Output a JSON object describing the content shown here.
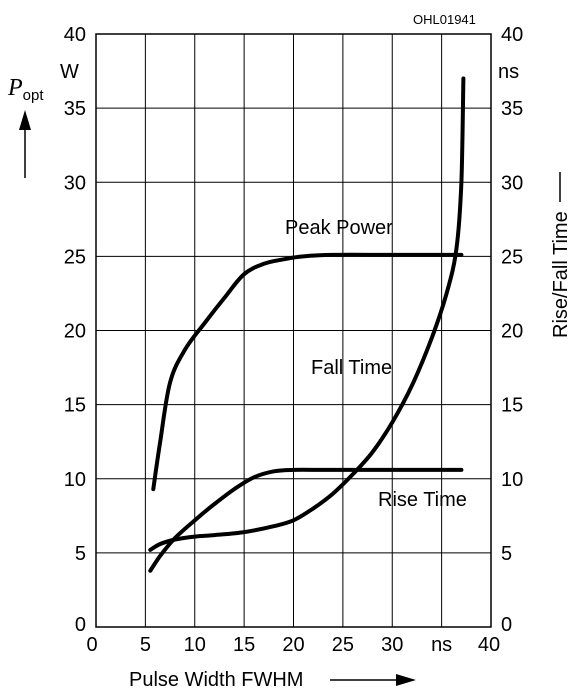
{
  "chart_data": {
    "type": "line",
    "id_label": "OHL01941",
    "xlabel": "Pulse Width FWHM",
    "x_unit": "ns",
    "y_left_label_main": "P",
    "y_left_label_sub": "opt",
    "y_left_unit": "W",
    "y_right_label": "Rise/Fall Time",
    "y_right_unit": "ns",
    "xlim": [
      0,
      40
    ],
    "ylim": [
      0,
      40
    ],
    "x_ticks": [
      "0",
      "5",
      "10",
      "15",
      "20",
      "25",
      "30",
      "ns",
      "40"
    ],
    "y_ticks_left": [
      "0",
      "5",
      "10",
      "15",
      "20",
      "25",
      "30",
      "35",
      "40"
    ],
    "y_ticks_right": [
      "0",
      "5",
      "10",
      "15",
      "20",
      "25",
      "30",
      "35",
      "40"
    ],
    "grid": true,
    "series": [
      {
        "name": "Peak Power",
        "x": [
          5.8,
          6.5,
          7.5,
          9,
          11,
          13,
          15,
          17,
          19,
          21,
          24,
          30,
          37
        ],
        "y": [
          9.3,
          12.5,
          16.5,
          18.7,
          20.5,
          22.2,
          23.8,
          24.5,
          24.8,
          25.0,
          25.1,
          25.1,
          25.1
        ]
      },
      {
        "name": "Fall Time",
        "x": [
          5.5,
          6.5,
          8,
          10,
          12,
          15,
          18,
          20,
          22,
          24,
          26,
          28,
          30,
          32,
          34,
          35.5,
          36.5,
          37,
          37.2
        ],
        "y": [
          5.2,
          5.6,
          5.9,
          6.1,
          6.2,
          6.4,
          6.8,
          7.2,
          8.0,
          9.0,
          10.3,
          11.8,
          13.8,
          16.3,
          19.5,
          22.5,
          25.5,
          30,
          37
        ]
      },
      {
        "name": "Rise Time",
        "x": [
          5.5,
          6.5,
          8,
          10,
          12,
          14,
          16,
          18,
          20,
          23,
          27,
          32,
          37
        ],
        "y": [
          3.8,
          4.8,
          6.0,
          7.2,
          8.3,
          9.3,
          10.1,
          10.5,
          10.6,
          10.6,
          10.6,
          10.6,
          10.6
        ]
      }
    ]
  }
}
